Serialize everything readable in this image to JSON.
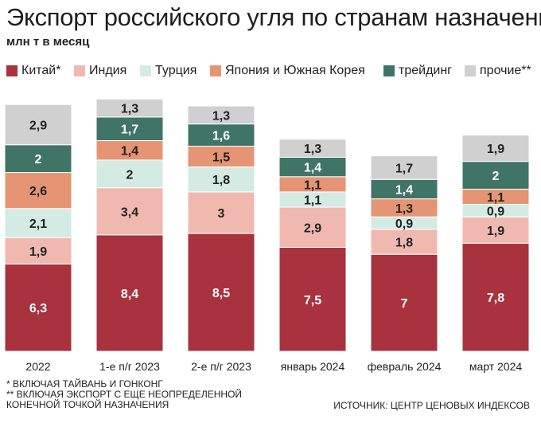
{
  "title": "Экспорт российского угля по странам назначения",
  "subtitle": "млн т в месяц",
  "footnotes": [
    "* ВКЛЮЧАЯ ТАЙВАНЬ И ГОНКОНГ",
    "** ВКЛЮЧАЯ ЭКСПОРТ С ЕЩЕ НЕОПРЕДЕЛЕННОЙ",
    "КОНЕЧНОЙ ТОЧКОЙ НАЗНАЧЕНИЯ"
  ],
  "source": "ИСТОЧНИК: ЦЕНТР ЦЕНОВЫХ ИНДЕКСОВ",
  "chart_data": {
    "type": "bar",
    "stacked": true,
    "title": "Экспорт российского угля по странам назначения",
    "subtitle": "млн т в месяц",
    "categories": [
      "2022",
      "1-е п/г 2023",
      "2-е п/г 2023",
      "январь 2024",
      "февраль 2024",
      "март 2024"
    ],
    "legend_position": "top",
    "grid": false,
    "series": [
      {
        "name": "Китай*",
        "color": "#a8323e",
        "label_color": "#ffffff",
        "values": [
          6.3,
          8.4,
          8.5,
          7.5,
          7,
          7.8
        ],
        "labels": [
          "6,3",
          "8,4",
          "8,5",
          "7,5",
          "7",
          "7,8"
        ]
      },
      {
        "name": "Индия",
        "color": "#f0b9b0",
        "label_color": "#222222",
        "values": [
          1.9,
          3.4,
          3,
          2.9,
          1.8,
          1.9
        ],
        "labels": [
          "1,9",
          "3,4",
          "3",
          "2,9",
          "1,8",
          "1,9"
        ]
      },
      {
        "name": "Турция",
        "color": "#d3ebe3",
        "label_color": "#222222",
        "values": [
          2.1,
          2,
          1.8,
          1.1,
          0.9,
          0.9
        ],
        "labels": [
          "2,1",
          "2",
          "1,8",
          "1,1",
          "0,9",
          "0,9"
        ]
      },
      {
        "name": "Япония и Южная Корея",
        "color": "#e59474",
        "label_color": "#222222",
        "values": [
          2.6,
          1.4,
          1.5,
          1.1,
          1.3,
          1.1
        ],
        "labels": [
          "2,6",
          "1,4",
          "1,5",
          "1,1",
          "1,3",
          "1,1"
        ]
      },
      {
        "name": "трейдинг",
        "color": "#3f7466",
        "label_color": "#ffffff",
        "values": [
          2,
          1.7,
          1.6,
          1.4,
          1.4,
          2
        ],
        "labels": [
          "2",
          "1,7",
          "1,6",
          "1,4",
          "1,4",
          "2"
        ]
      },
      {
        "name": "прочие**",
        "color": "#d0d0d0",
        "label_color": "#222222",
        "values": [
          2.9,
          1.3,
          1.3,
          1.3,
          1.7,
          1.9
        ],
        "labels": [
          "2,9",
          "1,3",
          "1,3",
          "1,3",
          "1,7",
          "1,9"
        ]
      }
    ]
  }
}
